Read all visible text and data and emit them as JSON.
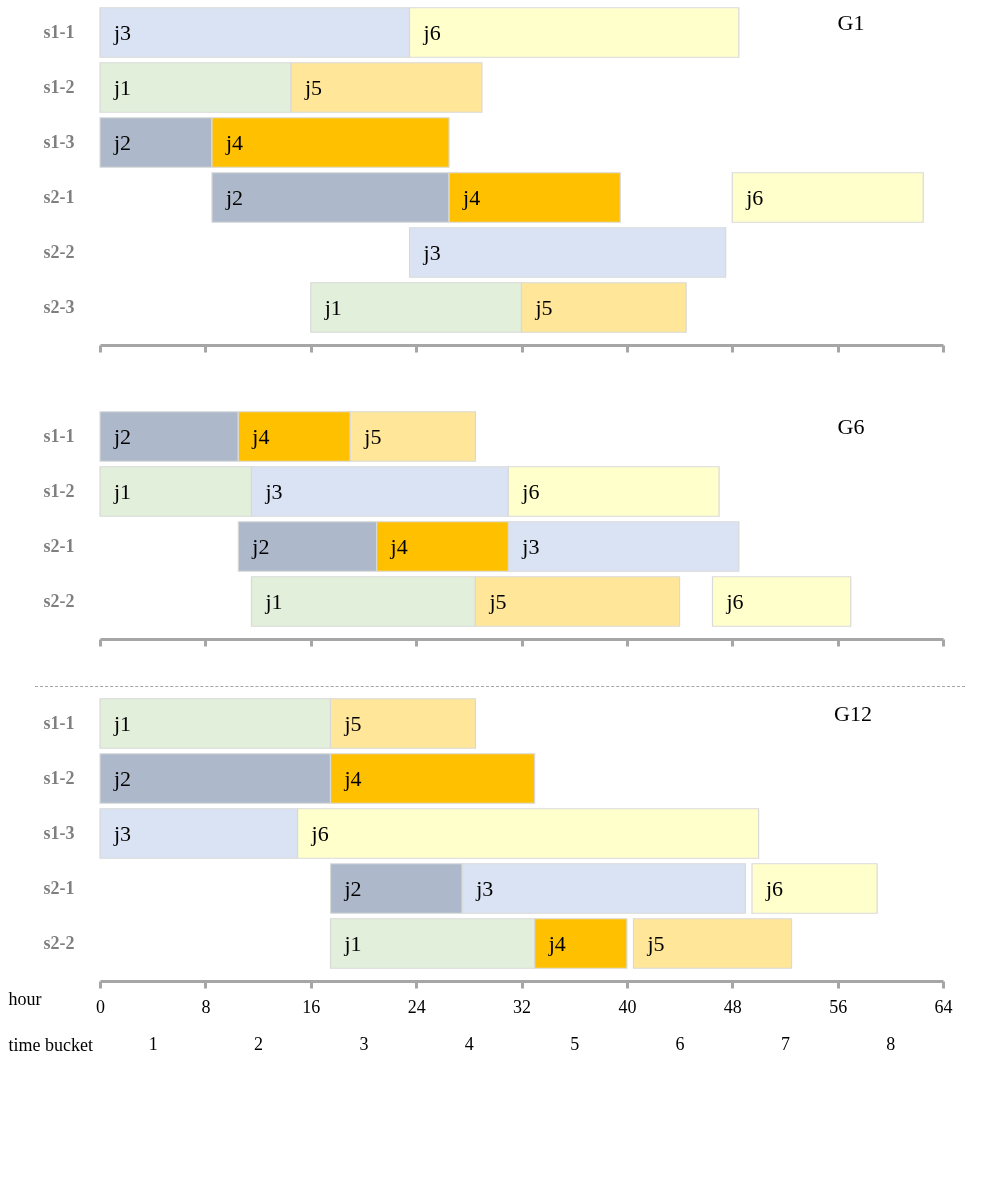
{
  "chart_data": [
    {
      "type": "bar",
      "orientation": "horizontal",
      "title": "G1",
      "categories": [
        "s1-1",
        "s1-2",
        "s1-3",
        "s2-1",
        "s2-2",
        "s2-3"
      ],
      "xlim": [
        0,
        64
      ],
      "xticks": [
        0,
        8,
        16,
        24,
        32,
        40,
        48,
        56,
        64
      ],
      "tick_labels": "y",
      "grid": false,
      "legend": false,
      "series": [
        {
          "name": "j1",
          "color": "#e2efda",
          "base": [
            null,
            0,
            null,
            null,
            null,
            16
          ],
          "values": [
            null,
            14.5,
            null,
            null,
            null,
            16
          ]
        },
        {
          "name": "j2",
          "color": "#adb9ca",
          "base": [
            null,
            null,
            0,
            8.5,
            null,
            null
          ],
          "values": [
            null,
            null,
            8.5,
            18,
            null,
            null
          ]
        },
        {
          "name": "j3",
          "color": "#dae3f3",
          "base": [
            0,
            null,
            null,
            null,
            23.5,
            null
          ],
          "values": [
            23.5,
            null,
            null,
            null,
            24,
            null
          ]
        },
        {
          "name": "j4",
          "color": "#ffc000",
          "base": [
            null,
            null,
            8.5,
            26.5,
            null,
            null
          ],
          "values": [
            null,
            null,
            18,
            13,
            null,
            null
          ]
        },
        {
          "name": "j5",
          "color": "#ffe699",
          "base": [
            null,
            14.5,
            null,
            null,
            null,
            32
          ],
          "values": [
            null,
            14.5,
            null,
            null,
            null,
            12.5
          ]
        },
        {
          "name": "j6",
          "color": "#ffffcc",
          "base": [
            23.5,
            null,
            null,
            48,
            null,
            null
          ],
          "values": [
            25,
            null,
            null,
            14.5,
            null,
            null
          ]
        }
      ]
    },
    {
      "type": "bar",
      "orientation": "horizontal",
      "title": "G6",
      "categories": [
        "s1-1",
        "s1-2",
        "s2-1",
        "s2-2"
      ],
      "xlim": [
        0,
        64
      ],
      "xticks": [
        0,
        8,
        16,
        24,
        32,
        40,
        48,
        56,
        64
      ],
      "tick_labels": "y",
      "grid": false,
      "legend": false,
      "series": [
        {
          "name": "j1",
          "color": "#e2efda",
          "base": [
            null,
            0,
            null,
            11.5
          ],
          "values": [
            null,
            11.5,
            null,
            17
          ]
        },
        {
          "name": "j2",
          "color": "#adb9ca",
          "base": [
            0,
            null,
            10.5,
            null
          ],
          "values": [
            10.5,
            null,
            10.5,
            null
          ]
        },
        {
          "name": "j3",
          "color": "#dae3f3",
          "base": [
            null,
            11.5,
            31,
            null
          ],
          "values": [
            null,
            19.5,
            17.5,
            null
          ]
        },
        {
          "name": "j4",
          "color": "#ffc000",
          "base": [
            10.5,
            null,
            21,
            null
          ],
          "values": [
            8.5,
            null,
            10,
            null
          ]
        },
        {
          "name": "j5",
          "color": "#ffe699",
          "base": [
            19,
            null,
            null,
            28.5
          ],
          "values": [
            9.5,
            null,
            null,
            15.5
          ]
        },
        {
          "name": "j6",
          "color": "#ffffcc",
          "base": [
            null,
            31,
            null,
            46.5
          ],
          "values": [
            null,
            16,
            null,
            10.5
          ]
        }
      ]
    },
    {
      "type": "bar",
      "orientation": "horizontal",
      "title": "G12",
      "categories": [
        "s1-1",
        "s1-2",
        "s1-3",
        "s2-1",
        "s2-2"
      ],
      "xlim": [
        0,
        64
      ],
      "xticks": [
        0,
        8,
        16,
        24,
        32,
        40,
        48,
        56,
        64
      ],
      "xlabel": "hour",
      "x2label": "time bucket",
      "x2lim": [
        0.5,
        8.5
      ],
      "x2ticks": [
        1,
        2,
        3,
        4,
        5,
        6,
        7,
        8
      ],
      "grid": false,
      "legend": false,
      "series": [
        {
          "name": "j1",
          "color": "#e2efda",
          "base": [
            0,
            null,
            null,
            null,
            17.5
          ],
          "values": [
            17.5,
            null,
            null,
            null,
            15.5
          ]
        },
        {
          "name": "j2",
          "color": "#adb9ca",
          "base": [
            null,
            0,
            null,
            17.5,
            null
          ],
          "values": [
            null,
            17.5,
            null,
            10,
            null
          ]
        },
        {
          "name": "j3",
          "color": "#dae3f3",
          "base": [
            null,
            null,
            0,
            27.5,
            null
          ],
          "values": [
            null,
            null,
            15,
            21.5,
            null
          ]
        },
        {
          "name": "j4",
          "color": "#ffc000",
          "base": [
            null,
            17.5,
            null,
            null,
            33
          ],
          "values": [
            null,
            15.5,
            null,
            null,
            7
          ]
        },
        {
          "name": "j5",
          "color": "#ffe699",
          "base": [
            17.5,
            null,
            null,
            null,
            40.5
          ],
          "values": [
            11,
            null,
            null,
            null,
            12
          ]
        },
        {
          "name": "j6",
          "color": "#ffffcc",
          "base": [
            null,
            null,
            15,
            49.5,
            null
          ],
          "values": [
            null,
            null,
            35,
            9.5,
            null
          ]
        }
      ]
    }
  ]
}
